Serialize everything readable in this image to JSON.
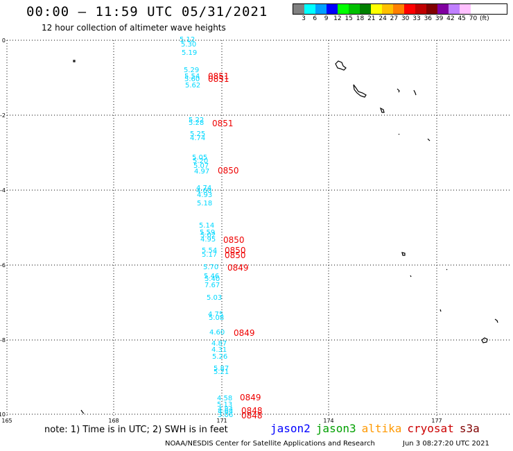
{
  "title": "00:00 – 11:59 UTC 05/31/2021",
  "subtitle": "12 hour collection of altimeter wave heights",
  "legend": {
    "colors": [
      "#808080",
      "#00ffff",
      "#00a0ff",
      "#0000ff",
      "#00ff00",
      "#00c000",
      "#008000",
      "#ffff00",
      "#ffc000",
      "#ff8000",
      "#ff0000",
      "#c00000",
      "#800000",
      "#8000a0",
      "#c080ff",
      "#ffc0ff"
    ],
    "ticks": [
      "3",
      "6",
      "9",
      "12",
      "15",
      "18",
      "21",
      "24",
      "27",
      "30",
      "33",
      "36",
      "39",
      "42",
      "45",
      "70",
      "(ft)"
    ]
  },
  "lat_labels": [
    "0",
    "-2",
    "-4",
    "-6",
    "-8",
    "-10"
  ],
  "lon_labels": [
    "165",
    "168",
    "171",
    "174",
    "177"
  ],
  "measurements": [
    "5.12",
    "5.30",
    "5.19",
    "5.29",
    "5.54",
    "5.60",
    "5.62",
    "5.22",
    "5.28",
    "5.25",
    "4.74",
    "5.05",
    "5.20",
    "5.07",
    "4.97",
    "4.74",
    "4.60",
    "4.93",
    "5.18",
    "5.14",
    "5.59",
    "5.02",
    "4.95",
    "5.54",
    "5.17",
    "5.70",
    "5.46",
    "5.40",
    "7.67",
    "5.03",
    "4.75",
    "5.08",
    "4.60",
    "4.87",
    "4.31",
    "5.26",
    "5.87",
    "5.21",
    "4.58",
    "5.13",
    "4.84",
    "4.64",
    "3.06"
  ],
  "time_labels": [
    "0851",
    "0851",
    "0851",
    "0850",
    "0850",
    "0850",
    "0850",
    "0849",
    "0849",
    "0849",
    "0848",
    "0848"
  ],
  "note": "note: 1) Time is in UTC; 2) SWH is in feet",
  "missions": [
    {
      "name": "jason2",
      "color": "#0000ff"
    },
    {
      "name": "jason3",
      "color": "#00a000"
    },
    {
      "name": "altika",
      "color": "#ff9900"
    },
    {
      "name": "cryosat",
      "color": "#cc0000"
    },
    {
      "name": "s3a",
      "color": "#800000"
    }
  ],
  "credit": "NOAA/NESDIS Center for Satellite Applications and Research",
  "timestamp": "Jun  3 08:27:20 UTC 2021"
}
